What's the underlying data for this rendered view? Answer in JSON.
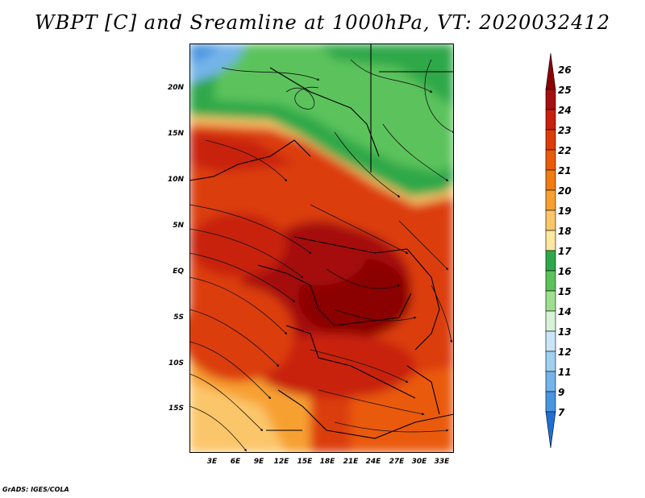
{
  "title": "WBPT [C] and Sreamline at 1000hPa, VT: 2020032412",
  "lat_labels": [
    "20N",
    "15N",
    "10N",
    "5N",
    "EQ",
    "5S",
    "10S",
    "15S"
  ],
  "lon_labels": [
    "3E",
    "6E",
    "9E",
    "12E",
    "15E",
    "18E",
    "21E",
    "24E",
    "27E",
    "30E",
    "33E"
  ],
  "colorbar": {
    "labels": [
      "26",
      "25",
      "24",
      "23",
      "22",
      "21",
      "20",
      "19",
      "18",
      "17",
      "16",
      "15",
      "14",
      "13",
      "12",
      "11",
      "9",
      "7"
    ],
    "colors": [
      "#8b0000",
      "#a50f0f",
      "#c8200e",
      "#dc3c0a",
      "#ea5a08",
      "#f07c12",
      "#f7a031",
      "#fbc66a",
      "#fce8a0",
      "#2ea84a",
      "#5cc35c",
      "#9edf8e",
      "#d8f2d8",
      "#c8e6f8",
      "#9fd0f0",
      "#74b4ea",
      "#4896e0",
      "#1e6fd4"
    ]
  },
  "footer": "GrADS: IGES/COLA"
}
